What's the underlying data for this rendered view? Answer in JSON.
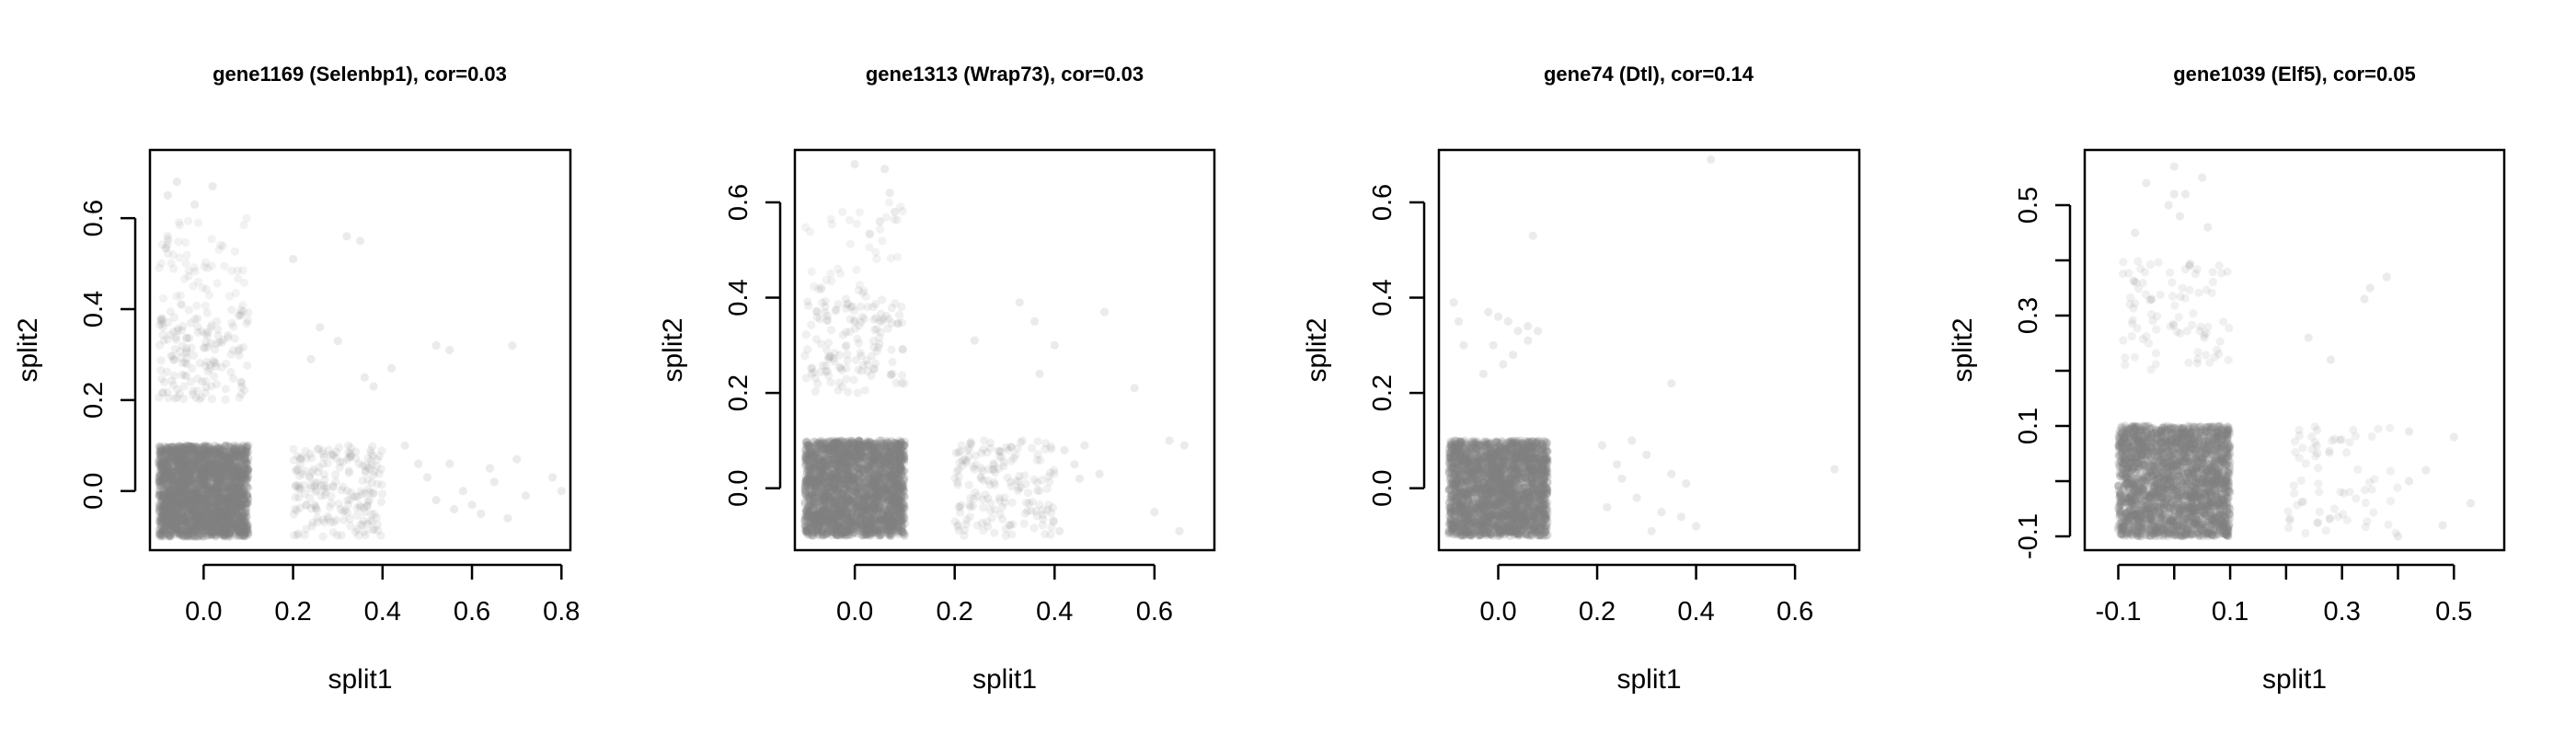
{
  "chart_data": [
    {
      "type": "scatter",
      "title": "gene1169 (Selenbp1), cor=0.03",
      "xlabel": "split1",
      "ylabel": "split2",
      "xlim": [
        -0.12,
        0.82
      ],
      "ylim": [
        -0.13,
        0.75
      ],
      "xticks": [
        0.0,
        0.2,
        0.4,
        0.6,
        0.8
      ],
      "xtick_labels": [
        "0.0",
        "0.2",
        "0.4",
        "0.6",
        "0.8"
      ],
      "yticks": [
        0.0,
        0.2,
        0.4,
        0.6
      ],
      "ytick_labels": [
        "0.0",
        "0.2",
        "0.4",
        "0.6"
      ],
      "point_color": "#808080",
      "clusters": [
        {
          "x": [
            -0.1,
            0.1
          ],
          "y": [
            -0.1,
            0.1
          ],
          "n": 2500,
          "alpha": 0.22
        },
        {
          "x": [
            -0.1,
            0.1
          ],
          "y": [
            0.2,
            0.4
          ],
          "n": 150,
          "alpha": 0.12
        },
        {
          "x": [
            0.2,
            0.4
          ],
          "y": [
            -0.1,
            0.1
          ],
          "n": 200,
          "alpha": 0.12
        },
        {
          "x": [
            -0.1,
            0.1
          ],
          "y": [
            0.4,
            0.6
          ],
          "n": 60,
          "alpha": 0.1
        }
      ],
      "points": [
        [
          -0.08,
          0.65
        ],
        [
          -0.06,
          0.68
        ],
        [
          0.02,
          0.67
        ],
        [
          -0.02,
          0.63
        ],
        [
          0.2,
          0.51
        ],
        [
          0.26,
          0.36
        ],
        [
          0.3,
          0.33
        ],
        [
          0.32,
          0.56
        ],
        [
          0.35,
          0.55
        ],
        [
          0.24,
          0.29
        ],
        [
          0.36,
          0.25
        ],
        [
          0.38,
          0.23
        ],
        [
          0.42,
          0.27
        ],
        [
          0.52,
          0.32
        ],
        [
          0.55,
          0.31
        ],
        [
          0.69,
          0.32
        ],
        [
          0.45,
          0.1
        ],
        [
          0.48,
          0.06
        ],
        [
          0.5,
          0.03
        ],
        [
          0.52,
          -0.02
        ],
        [
          0.55,
          0.06
        ],
        [
          0.58,
          0.0
        ],
        [
          0.6,
          -0.03
        ],
        [
          0.62,
          -0.05
        ],
        [
          0.65,
          0.02
        ],
        [
          0.68,
          -0.06
        ],
        [
          0.7,
          0.07
        ],
        [
          0.72,
          -0.01
        ],
        [
          0.78,
          0.03
        ],
        [
          0.8,
          0.0
        ],
        [
          0.56,
          -0.04
        ],
        [
          0.64,
          0.05
        ]
      ]
    },
    {
      "type": "scatter",
      "title": "gene1313 (Wrap73), cor=0.03",
      "xlabel": "split1",
      "ylabel": "split2",
      "xlim": [
        -0.12,
        0.72
      ],
      "ylim": [
        -0.13,
        0.71
      ],
      "xticks": [
        0.0,
        0.2,
        0.4,
        0.6
      ],
      "xtick_labels": [
        "0.0",
        "0.2",
        "0.4",
        "0.6"
      ],
      "yticks": [
        0.0,
        0.2,
        0.4,
        0.6
      ],
      "ytick_labels": [
        "0.0",
        "0.2",
        "0.4",
        "0.6"
      ],
      "point_color": "#808080",
      "clusters": [
        {
          "x": [
            -0.1,
            0.1
          ],
          "y": [
            -0.1,
            0.1
          ],
          "n": 2500,
          "alpha": 0.22
        },
        {
          "x": [
            -0.1,
            0.1
          ],
          "y": [
            0.2,
            0.4
          ],
          "n": 140,
          "alpha": 0.12
        },
        {
          "x": [
            0.2,
            0.4
          ],
          "y": [
            -0.1,
            0.1
          ],
          "n": 170,
          "alpha": 0.12
        },
        {
          "x": [
            -0.1,
            0.1
          ],
          "y": [
            0.4,
            0.6
          ],
          "n": 40,
          "alpha": 0.1
        }
      ],
      "points": [
        [
          0.0,
          0.68
        ],
        [
          0.06,
          0.67
        ],
        [
          0.07,
          0.62
        ],
        [
          0.05,
          0.56
        ],
        [
          0.08,
          0.58
        ],
        [
          0.33,
          0.39
        ],
        [
          0.36,
          0.35
        ],
        [
          0.24,
          0.31
        ],
        [
          0.4,
          0.3
        ],
        [
          0.5,
          0.37
        ],
        [
          0.56,
          0.21
        ],
        [
          0.42,
          0.08
        ],
        [
          0.44,
          0.05
        ],
        [
          0.45,
          0.02
        ],
        [
          0.49,
          0.03
        ],
        [
          0.46,
          0.09
        ],
        [
          0.6,
          -0.05
        ],
        [
          0.63,
          0.1
        ],
        [
          0.66,
          0.09
        ],
        [
          0.65,
          -0.09
        ],
        [
          0.41,
          -0.09
        ],
        [
          0.37,
          0.24
        ]
      ]
    },
    {
      "type": "scatter",
      "title": "gene74 (Dtl), cor=0.14",
      "xlabel": "split1",
      "ylabel": "split2",
      "xlim": [
        -0.12,
        0.73
      ],
      "ylim": [
        -0.13,
        0.71
      ],
      "xticks": [
        0.0,
        0.2,
        0.4,
        0.6
      ],
      "xtick_labels": [
        "0.0",
        "0.2",
        "0.4",
        "0.6"
      ],
      "yticks": [
        0.0,
        0.2,
        0.4,
        0.6
      ],
      "ytick_labels": [
        "0.0",
        "0.2",
        "0.4",
        "0.6"
      ],
      "point_color": "#808080",
      "clusters": [
        {
          "x": [
            -0.1,
            0.1
          ],
          "y": [
            -0.1,
            0.1
          ],
          "n": 2400,
          "alpha": 0.22
        }
      ],
      "points": [
        [
          -0.09,
          0.39
        ],
        [
          -0.08,
          0.35
        ],
        [
          -0.07,
          0.3
        ],
        [
          -0.02,
          0.37
        ],
        [
          0.0,
          0.36
        ],
        [
          0.02,
          0.35
        ],
        [
          0.04,
          0.33
        ],
        [
          0.06,
          0.34
        ],
        [
          0.08,
          0.33
        ],
        [
          0.06,
          0.31
        ],
        [
          -0.01,
          0.3
        ],
        [
          0.03,
          0.28
        ],
        [
          0.01,
          0.26
        ],
        [
          -0.03,
          0.24
        ],
        [
          0.07,
          0.53
        ],
        [
          0.43,
          0.69
        ],
        [
          0.35,
          0.22
        ],
        [
          0.21,
          0.09
        ],
        [
          0.24,
          0.05
        ],
        [
          0.27,
          0.1
        ],
        [
          0.3,
          0.07
        ],
        [
          0.22,
          -0.04
        ],
        [
          0.28,
          -0.02
        ],
        [
          0.33,
          -0.05
        ],
        [
          0.35,
          0.03
        ],
        [
          0.38,
          0.01
        ],
        [
          0.31,
          -0.09
        ],
        [
          0.37,
          -0.06
        ],
        [
          0.4,
          -0.08
        ],
        [
          0.25,
          0.02
        ],
        [
          0.68,
          0.04
        ]
      ]
    },
    {
      "type": "scatter",
      "title": "gene1039 (Elf5), cor=0.05",
      "xlabel": "split1",
      "ylabel": "split2",
      "xlim": [
        -0.16,
        0.59
      ],
      "ylim": [
        -0.125,
        0.6
      ],
      "xticks": [
        -0.1,
        0.0,
        0.1,
        0.2,
        0.3,
        0.4,
        0.5
      ],
      "xtick_labels": [
        "-0.1",
        "",
        "0.1",
        "",
        "0.3",
        "",
        "0.5"
      ],
      "yticks": [
        -0.1,
        0.0,
        0.1,
        0.2,
        0.3,
        0.4,
        0.5
      ],
      "ytick_labels": [
        "-0.1",
        "",
        "0.1",
        "",
        "0.3",
        "",
        "0.5"
      ],
      "point_color": "#808080",
      "clusters": [
        {
          "x": [
            -0.1,
            0.1
          ],
          "y": [
            -0.1,
            0.1
          ],
          "n": 2400,
          "alpha": 0.22
        },
        {
          "x": [
            -0.1,
            0.1
          ],
          "y": [
            0.2,
            0.4
          ],
          "n": 90,
          "alpha": 0.12
        },
        {
          "x": [
            0.2,
            0.4
          ],
          "y": [
            -0.1,
            0.1
          ],
          "n": 70,
          "alpha": 0.12
        }
      ],
      "points": [
        [
          -0.05,
          0.54
        ],
        [
          0.0,
          0.57
        ],
        [
          0.05,
          0.55
        ],
        [
          0.0,
          0.52
        ],
        [
          -0.01,
          0.5
        ],
        [
          0.02,
          0.52
        ],
        [
          0.01,
          0.48
        ],
        [
          -0.07,
          0.45
        ],
        [
          0.06,
          0.46
        ],
        [
          0.24,
          0.26
        ],
        [
          0.28,
          0.22
        ],
        [
          0.34,
          0.33
        ],
        [
          0.35,
          0.35
        ],
        [
          0.38,
          0.37
        ],
        [
          0.42,
          0.09
        ],
        [
          0.45,
          0.02
        ],
        [
          0.48,
          -0.08
        ],
        [
          0.5,
          0.08
        ],
        [
          0.53,
          -0.04
        ],
        [
          0.4,
          -0.1
        ],
        [
          0.42,
          0.0
        ]
      ]
    }
  ]
}
